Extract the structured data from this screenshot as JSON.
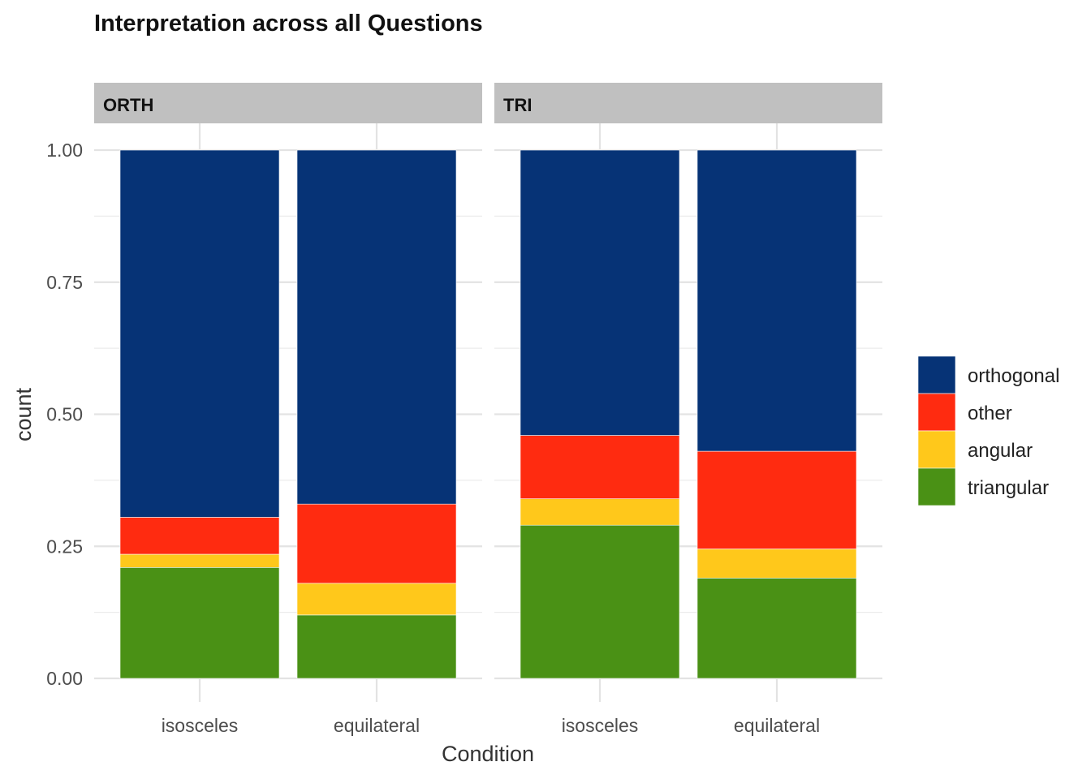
{
  "chart_data": {
    "type": "bar",
    "stacked": true,
    "title": "Interpretation across all Questions",
    "xlabel": "Condition",
    "ylabel": "count",
    "ylim": [
      0,
      1
    ],
    "y_ticks": [
      "0.00",
      "0.25",
      "0.50",
      "0.75",
      "1.00"
    ],
    "grid": true,
    "legend_position": "right",
    "categories": [
      "isosceles",
      "equilateral"
    ],
    "series_order": [
      "orthogonal",
      "other",
      "angular",
      "triangular"
    ],
    "colors": {
      "orthogonal": "#063376",
      "other": "#ff2b10",
      "angular": "#ffc81b",
      "triangular": "#4a9115"
    },
    "facets": [
      {
        "label": "ORTH",
        "series": [
          {
            "name": "triangular",
            "values": [
              0.21,
              0.12
            ]
          },
          {
            "name": "angular",
            "values": [
              0.025,
              0.06
            ]
          },
          {
            "name": "other",
            "values": [
              0.07,
              0.15
            ]
          },
          {
            "name": "orthogonal",
            "values": [
              0.695,
              0.67
            ]
          }
        ]
      },
      {
        "label": "TRI",
        "series": [
          {
            "name": "triangular",
            "values": [
              0.29,
              0.19
            ]
          },
          {
            "name": "angular",
            "values": [
              0.05,
              0.055
            ]
          },
          {
            "name": "other",
            "values": [
              0.12,
              0.185
            ]
          },
          {
            "name": "orthogonal",
            "values": [
              0.54,
              0.57
            ]
          }
        ]
      }
    ]
  }
}
